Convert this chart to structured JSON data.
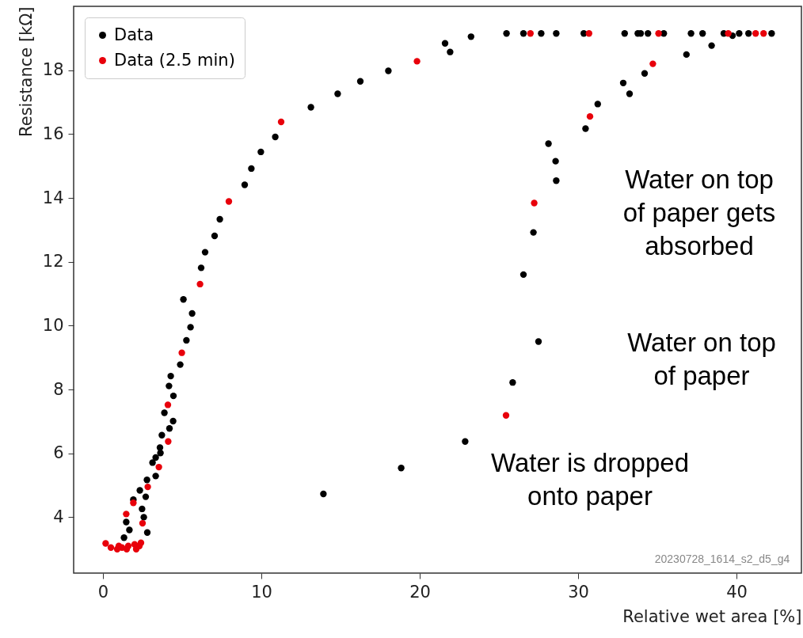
{
  "chart_data": {
    "type": "scatter",
    "xlabel": "Relative wet area [%]",
    "ylabel": "Resistance [kΩ]",
    "xlim": [
      -1.85,
      44.1
    ],
    "ylim": [
      2.25,
      20.0
    ],
    "xticks": [
      0,
      10,
      20,
      30,
      40
    ],
    "yticks": [
      4,
      6,
      8,
      10,
      12,
      14,
      16,
      18
    ],
    "grid": false,
    "legend": "top left",
    "marker": "circle",
    "series": [
      {
        "name": "Data",
        "color": "#000000",
        "x": [
          5.08,
          5.63,
          5.53,
          5.27,
          4.88,
          4.28,
          4.17,
          4.45,
          3.88,
          4.43,
          4.2,
          3.72,
          3.6,
          3.63,
          3.33,
          3.13,
          3.33,
          2.78,
          2.33,
          2.7,
          1.92,
          2.47,
          2.58,
          1.47,
          1.67,
          2.8,
          1.33,
          21.92,
          18.02,
          16.25,
          14.82,
          13.13,
          10.88,
          9.97,
          9.37,
          8.95,
          7.38,
          7.05,
          6.45,
          6.2,
          21.6,
          23.24,
          25.48,
          26.55,
          27.67,
          28.62,
          30.36,
          32.94,
          33.77,
          33.95,
          34.41,
          35.41,
          37.13,
          37.86,
          39.2,
          39.75,
          40.17,
          40.76,
          42.22,
          38.43,
          36.84,
          34.2,
          32.85,
          33.25,
          31.24,
          30.47,
          28.13,
          28.58,
          28.62,
          27.18,
          26.55,
          27.5,
          25.87,
          22.87,
          18.83,
          13.92
        ],
        "values": [
          10.82,
          10.38,
          9.95,
          9.54,
          8.78,
          8.42,
          8.11,
          7.8,
          7.27,
          7.01,
          6.78,
          6.57,
          6.18,
          6.01,
          5.87,
          5.71,
          5.29,
          5.17,
          4.84,
          4.64,
          4.55,
          4.26,
          4.0,
          3.85,
          3.6,
          3.52,
          3.36,
          18.57,
          17.98,
          17.65,
          17.26,
          16.84,
          15.91,
          15.44,
          14.92,
          14.41,
          13.33,
          12.81,
          12.3,
          11.81,
          18.84,
          19.05,
          19.15,
          19.15,
          19.15,
          19.15,
          19.15,
          19.15,
          19.15,
          19.15,
          19.15,
          19.15,
          19.15,
          19.15,
          19.15,
          19.08,
          19.15,
          19.15,
          19.15,
          18.77,
          18.49,
          17.9,
          17.6,
          17.26,
          16.94,
          16.17,
          15.7,
          15.15,
          14.54,
          12.92,
          11.6,
          9.5,
          8.22,
          6.37,
          5.54,
          4.73
        ]
      },
      {
        "name": "Data (2.5 min)",
        "color": "#e8000b",
        "x": [
          6.13,
          4.98,
          4.1,
          4.12,
          3.53,
          2.83,
          1.92,
          1.47,
          2.5,
          0.17,
          0.5,
          0.9,
          1.2,
          1.5,
          2.1,
          2.3,
          1.0,
          1.6,
          2.0,
          2.4,
          19.83,
          11.25,
          7.95,
          26.99,
          30.69,
          35.08,
          39.48,
          41.21,
          41.71,
          34.72,
          30.75,
          27.23,
          25.45
        ],
        "values": [
          11.3,
          9.15,
          7.52,
          6.37,
          5.57,
          4.95,
          4.45,
          4.1,
          3.81,
          3.18,
          3.05,
          3.0,
          3.05,
          3.0,
          3.0,
          3.1,
          3.1,
          3.1,
          3.15,
          3.2,
          18.28,
          16.38,
          13.89,
          19.15,
          19.15,
          19.15,
          19.15,
          19.15,
          19.15,
          18.2,
          16.55,
          13.84,
          7.19
        ]
      }
    ],
    "annotations": [
      "Water on top of paper gets absorbed",
      "Water on top of paper",
      "Water is dropped onto paper",
      "20230728_1614_s2_d5_g4"
    ]
  }
}
